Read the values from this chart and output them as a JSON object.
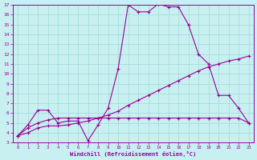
{
  "xlabel": "Windchill (Refroidissement éolien,°C)",
  "bg_color": "#c8f0f0",
  "line_color": "#990099",
  "grid_color": "#a0d8d8",
  "xlim": [
    -0.5,
    23.5
  ],
  "ylim": [
    3,
    17
  ],
  "xticks": [
    0,
    1,
    2,
    3,
    4,
    5,
    6,
    7,
    8,
    9,
    10,
    11,
    12,
    13,
    14,
    15,
    16,
    17,
    18,
    19,
    20,
    21,
    22,
    23
  ],
  "yticks": [
    3,
    4,
    5,
    6,
    7,
    8,
    9,
    10,
    11,
    12,
    13,
    14,
    15,
    16,
    17
  ],
  "line1_x": [
    0,
    1,
    2,
    3,
    4,
    5,
    6,
    7,
    8,
    9,
    10,
    11,
    12,
    13,
    14,
    15,
    16,
    17,
    18,
    19,
    20,
    21,
    22,
    23
  ],
  "line1_y": [
    3.7,
    4.8,
    6.3,
    6.3,
    5.0,
    5.2,
    5.2,
    3.2,
    4.8,
    6.5,
    10.5,
    17.0,
    16.3,
    16.3,
    17.1,
    16.8,
    16.8,
    15.0,
    12.0,
    11.0,
    7.8,
    7.8,
    6.5,
    5.0
  ],
  "line2_x": [
    0,
    1,
    2,
    3,
    4,
    5,
    6,
    7,
    8,
    9,
    10,
    11,
    12,
    13,
    14,
    15,
    16,
    17,
    18,
    19,
    20,
    21,
    22,
    23
  ],
  "line2_y": [
    3.7,
    4.0,
    4.5,
    4.7,
    4.7,
    4.8,
    5.0,
    5.2,
    5.5,
    5.8,
    6.2,
    6.8,
    7.3,
    7.8,
    8.3,
    8.8,
    9.3,
    9.8,
    10.3,
    10.7,
    11.0,
    11.3,
    11.5,
    11.8
  ],
  "line3_x": [
    0,
    1,
    2,
    3,
    4,
    5,
    6,
    7,
    8,
    9,
    10,
    11,
    12,
    13,
    14,
    15,
    16,
    17,
    18,
    19,
    20,
    21,
    22,
    23
  ],
  "line3_y": [
    3.7,
    4.5,
    5.0,
    5.3,
    5.5,
    5.5,
    5.5,
    5.5,
    5.5,
    5.5,
    5.5,
    5.5,
    5.5,
    5.5,
    5.5,
    5.5,
    5.5,
    5.5,
    5.5,
    5.5,
    5.5,
    5.5,
    5.5,
    5.0
  ]
}
